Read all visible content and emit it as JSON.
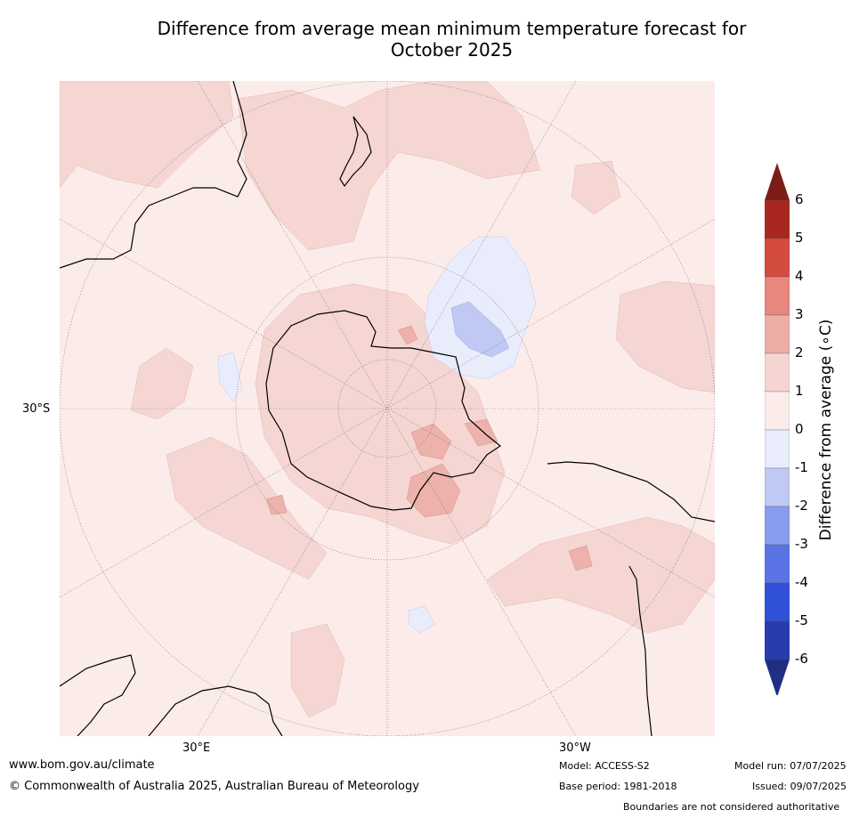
{
  "title": {
    "line1": "Difference from average mean minimum temperature forecast for",
    "line2": "October 2025"
  },
  "map": {
    "projection": "south-polar",
    "gridline_labels": {
      "lat_30s": "30°S",
      "lon_30e": "30°E",
      "lon_30w": "30°W"
    },
    "colors": {
      "ocean_fill": "#fbecea",
      "anom_1_2": "#f5d6d3",
      "anom_2_3": "#ecb2ab",
      "anom_3_4": "#e88a80",
      "anom_0_m1": "#e9ecfb",
      "anom_m1_m2": "#c0c9f4",
      "coast": "#000000",
      "border": "#808080",
      "graticule": "#666666"
    }
  },
  "colorbar": {
    "label": "Difference from average (∘C)",
    "ticks": [
      "6",
      "5",
      "4",
      "3",
      "2",
      "1",
      "0",
      "-1",
      "-2",
      "-3",
      "-4",
      "-5",
      "-6"
    ],
    "colors": [
      "#7b1d17",
      "#a8281f",
      "#d44b3f",
      "#e8877e",
      "#edaea8",
      "#f5d5d2",
      "#fbecea",
      "#e9ecfb",
      "#c0c9f4",
      "#8a9cee",
      "#5a74e6",
      "#3050d8",
      "#283cae",
      "#1f2f82"
    ]
  },
  "footer": {
    "website": "www.bom.gov.au/climate",
    "copyright": "© Commonwealth of Australia 2025, Australian Bureau of Meteorology",
    "model": "Model: ACCESS-S2",
    "base_period": "Base period: 1981-2018",
    "model_run": "Model run: 07/07/2025",
    "issued": "Issued: 09/07/2025",
    "disclaimer": "Boundaries are not considered authoritative"
  }
}
